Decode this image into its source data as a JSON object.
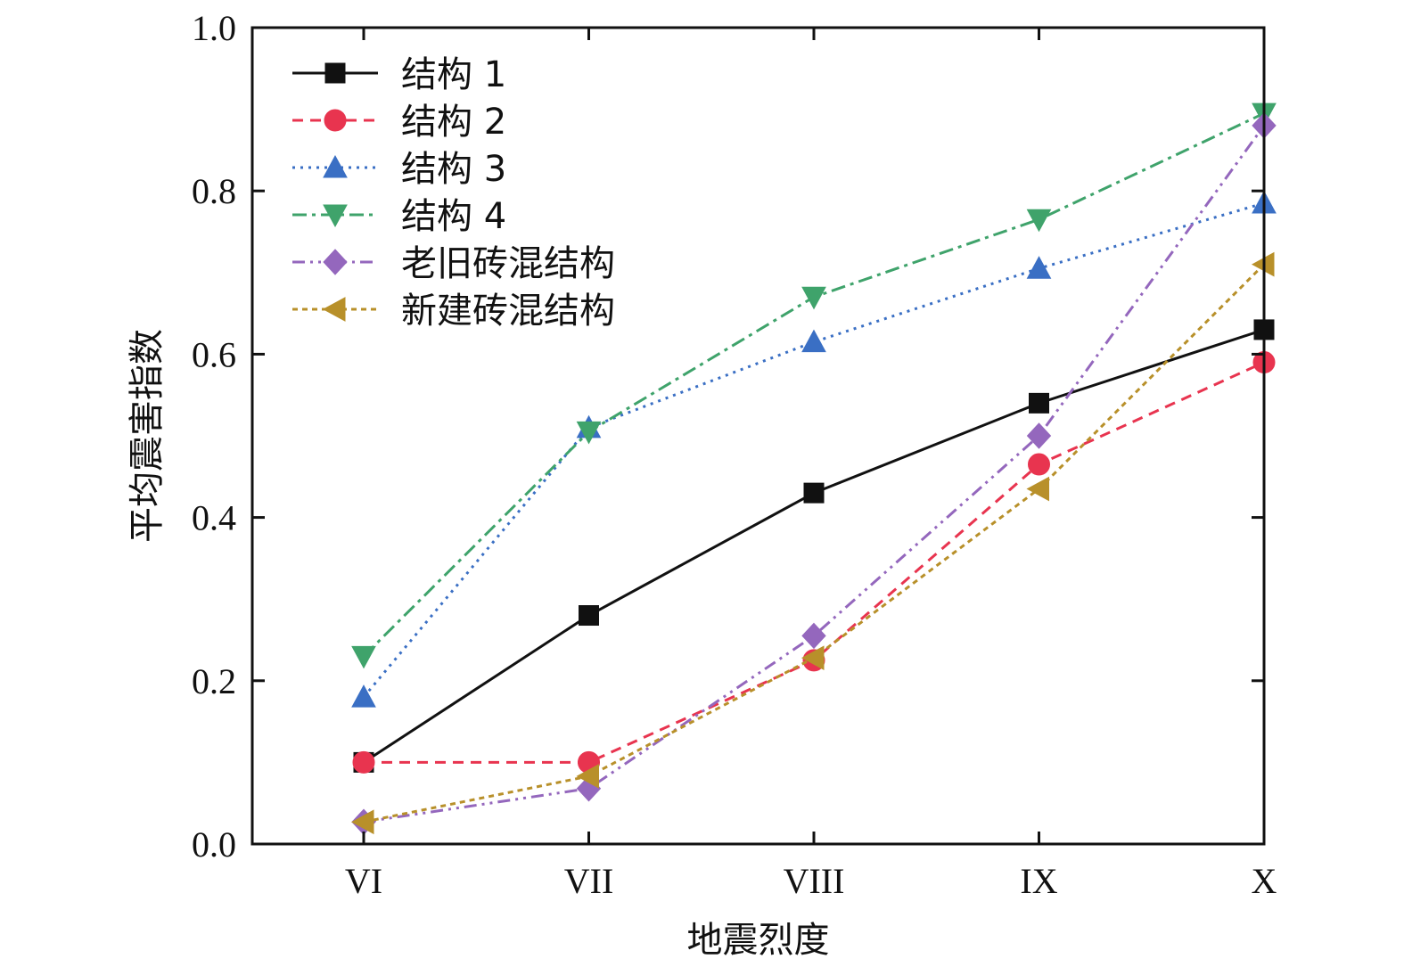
{
  "chart_data": {
    "type": "line",
    "xlabel": "地震烈度",
    "ylabel": "平均震害指数",
    "categories": [
      "VI",
      "VII",
      "VIII",
      "IX",
      "X"
    ],
    "ylim": [
      0.0,
      1.0
    ],
    "yticks": [
      "0.0",
      "0.2",
      "0.4",
      "0.6",
      "0.8",
      "1.0"
    ],
    "ytick_values": [
      0.0,
      0.2,
      0.4,
      0.6,
      0.8,
      1.0
    ],
    "grid": false,
    "legend_position": "top-left",
    "series": [
      {
        "name": "结构 1",
        "values": [
          0.1,
          0.28,
          0.43,
          0.54,
          0.63
        ],
        "color": "#111111",
        "marker": "square",
        "dash": "solid"
      },
      {
        "name": "结构 2",
        "values": [
          0.1,
          0.1,
          0.225,
          0.465,
          0.59
        ],
        "color": "#e8344f",
        "marker": "circle",
        "dash": "dash"
      },
      {
        "name": "结构 3",
        "values": [
          0.18,
          0.51,
          0.615,
          0.705,
          0.785
        ],
        "color": "#3a6fc4",
        "marker": "triangle-up",
        "dash": "dot"
      },
      {
        "name": "结构 4",
        "values": [
          0.23,
          0.505,
          0.67,
          0.765,
          0.895
        ],
        "color": "#3fa36b",
        "marker": "triangle-down",
        "dash": "dashdot"
      },
      {
        "name": "老旧砖混结构",
        "values": [
          0.027,
          0.068,
          0.255,
          0.5,
          0.88
        ],
        "color": "#9467bd",
        "marker": "diamond",
        "dash": "dashdotdot"
      },
      {
        "name": "新建砖混结构",
        "values": [
          0.027,
          0.083,
          0.228,
          0.435,
          0.71
        ],
        "color": "#b8902a",
        "marker": "triangle-left",
        "dash": "shortdash"
      }
    ]
  }
}
